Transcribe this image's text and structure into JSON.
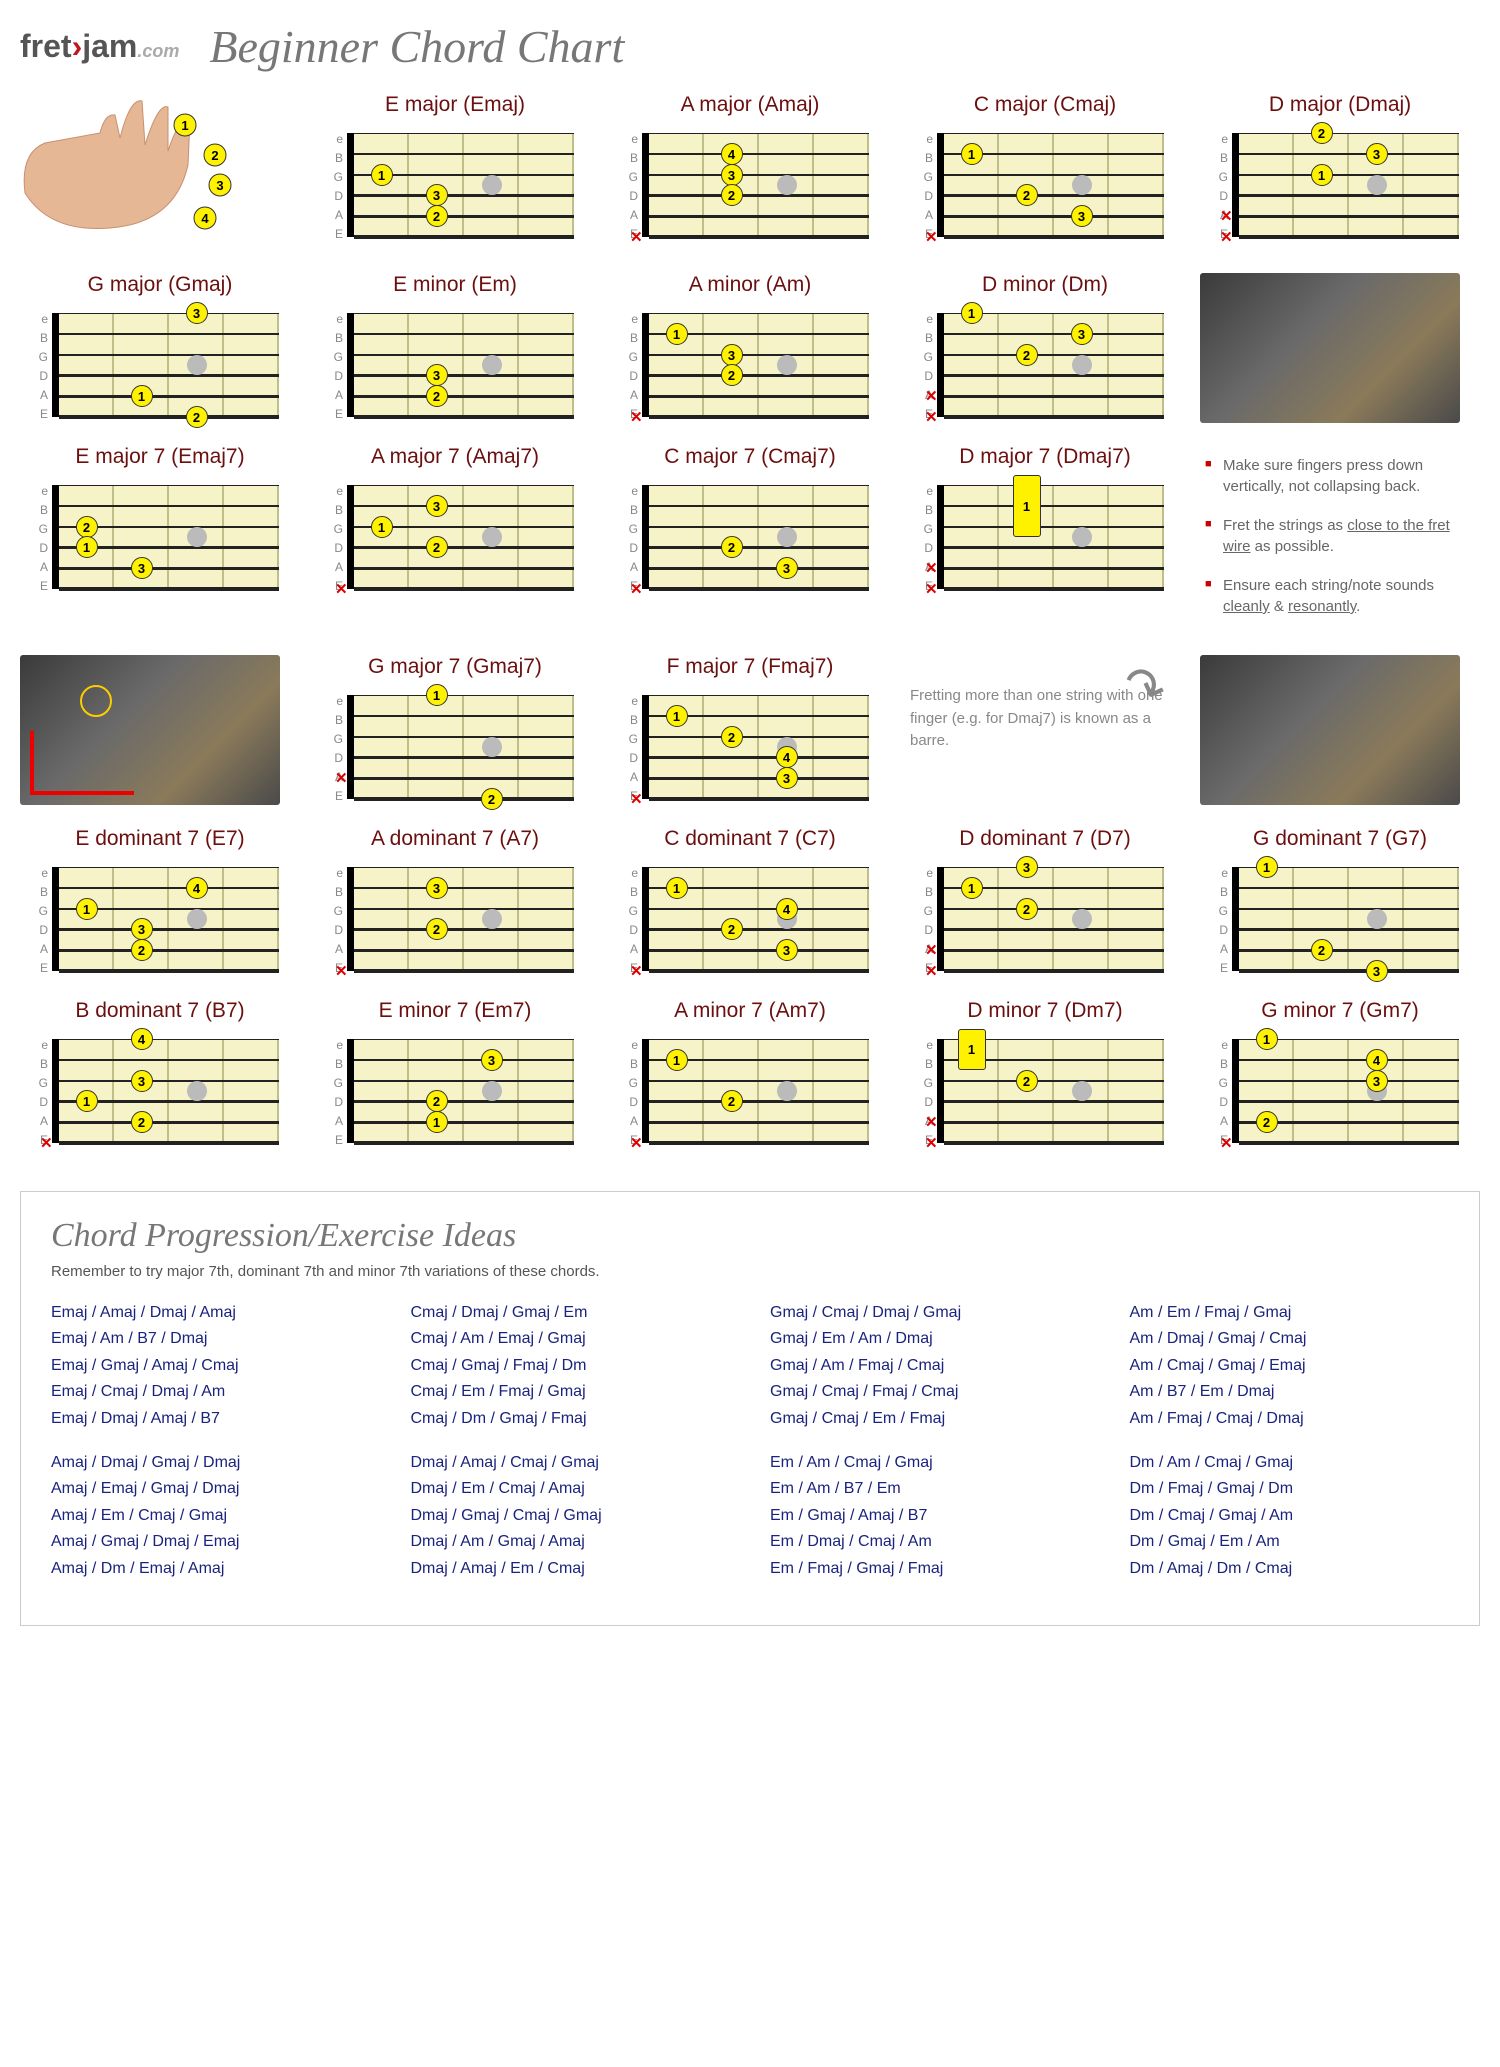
{
  "logo": {
    "fret": "fret",
    "arrow": "›",
    "jam": "jam",
    "dotcom": ".com"
  },
  "title": "Beginner Chord Chart",
  "stringLabels": [
    "e",
    "B",
    "G",
    "D",
    "A",
    "E"
  ],
  "handFingers": [
    "1",
    "2",
    "3",
    "4"
  ],
  "diagramStyle": {
    "bg": "#f5f3c7",
    "fingerColor": "#fff200",
    "fingerBorder": "#333",
    "nutColor": "#000",
    "fretLineColor": "#bfbf8a",
    "markerColor": "#bbb",
    "muteColor": "#d00",
    "titleColor": "#6b0f0f",
    "frets": 4,
    "strings": 6,
    "stringWeights": [
      1,
      1.5,
      2,
      2.5,
      3,
      3.5
    ]
  },
  "chords": [
    {
      "name": "E major (Emaj)",
      "mutes": [],
      "fingers": [
        {
          "s": 3,
          "f": 1,
          "n": "1"
        },
        {
          "s": 4,
          "f": 2,
          "n": "3"
        },
        {
          "s": 5,
          "f": 2,
          "n": "2"
        }
      ]
    },
    {
      "name": "A major (Amaj)",
      "mutes": [
        6
      ],
      "fingers": [
        {
          "s": 2,
          "f": 2,
          "n": "4"
        },
        {
          "s": 3,
          "f": 2,
          "n": "3"
        },
        {
          "s": 4,
          "f": 2,
          "n": "2"
        }
      ]
    },
    {
      "name": "C major (Cmaj)",
      "mutes": [
        6
      ],
      "fingers": [
        {
          "s": 2,
          "f": 1,
          "n": "1"
        },
        {
          "s": 4,
          "f": 2,
          "n": "2"
        },
        {
          "s": 5,
          "f": 3,
          "n": "3"
        }
      ]
    },
    {
      "name": "D major (Dmaj)",
      "mutes": [
        5,
        6
      ],
      "fingers": [
        {
          "s": 1,
          "f": 2,
          "n": "2"
        },
        {
          "s": 2,
          "f": 3,
          "n": "3"
        },
        {
          "s": 3,
          "f": 2,
          "n": "1"
        }
      ]
    },
    {
      "name": "G major (Gmaj)",
      "mutes": [],
      "fingers": [
        {
          "s": 1,
          "f": 3,
          "n": "3"
        },
        {
          "s": 5,
          "f": 2,
          "n": "1"
        },
        {
          "s": 6,
          "f": 3,
          "n": "2"
        }
      ]
    },
    {
      "name": "E minor (Em)",
      "mutes": [],
      "fingers": [
        {
          "s": 4,
          "f": 2,
          "n": "3"
        },
        {
          "s": 5,
          "f": 2,
          "n": "2"
        }
      ]
    },
    {
      "name": "A minor (Am)",
      "mutes": [
        6
      ],
      "fingers": [
        {
          "s": 2,
          "f": 1,
          "n": "1"
        },
        {
          "s": 3,
          "f": 2,
          "n": "3"
        },
        {
          "s": 4,
          "f": 2,
          "n": "2"
        }
      ]
    },
    {
      "name": "D minor (Dm)",
      "mutes": [
        5,
        6
      ],
      "fingers": [
        {
          "s": 1,
          "f": 1,
          "n": "1"
        },
        {
          "s": 2,
          "f": 3,
          "n": "3"
        },
        {
          "s": 3,
          "f": 2,
          "n": "2"
        }
      ]
    },
    {
      "name": "E major 7 (Emaj7)",
      "mutes": [],
      "fingers": [
        {
          "s": 3,
          "f": 1,
          "n": "2"
        },
        {
          "s": 4,
          "f": 1,
          "n": "1"
        },
        {
          "s": 5,
          "f": 2,
          "n": "3"
        }
      ]
    },
    {
      "name": "A major 7 (Amaj7)",
      "mutes": [
        6
      ],
      "fingers": [
        {
          "s": 2,
          "f": 2,
          "n": "3"
        },
        {
          "s": 3,
          "f": 1,
          "n": "1"
        },
        {
          "s": 4,
          "f": 2,
          "n": "2"
        }
      ]
    },
    {
      "name": "C major 7 (Cmaj7)",
      "mutes": [
        6
      ],
      "fingers": [
        {
          "s": 4,
          "f": 2,
          "n": "2"
        },
        {
          "s": 5,
          "f": 3,
          "n": "3"
        }
      ]
    },
    {
      "name": "D major 7 (Dmaj7)",
      "mutes": [
        5,
        6
      ],
      "barre": {
        "f": 2,
        "from": 1,
        "to": 3,
        "n": "1"
      },
      "fingers": []
    },
    {
      "name": "G major 7 (Gmaj7)",
      "mutes": [
        5
      ],
      "fingers": [
        {
          "s": 1,
          "f": 2,
          "n": "1"
        },
        {
          "s": 6,
          "f": 3,
          "n": "2"
        }
      ]
    },
    {
      "name": "F major 7 (Fmaj7)",
      "mutes": [
        6
      ],
      "fingers": [
        {
          "s": 2,
          "f": 1,
          "n": "1"
        },
        {
          "s": 3,
          "f": 2,
          "n": "2"
        },
        {
          "s": 4,
          "f": 3,
          "n": "4"
        },
        {
          "s": 5,
          "f": 3,
          "n": "3"
        }
      ]
    },
    {
      "name": "E dominant 7 (E7)",
      "mutes": [],
      "fingers": [
        {
          "s": 2,
          "f": 3,
          "n": "4"
        },
        {
          "s": 3,
          "f": 1,
          "n": "1"
        },
        {
          "s": 4,
          "f": 2,
          "n": "3"
        },
        {
          "s": 5,
          "f": 2,
          "n": "2"
        }
      ]
    },
    {
      "name": "A dominant 7 (A7)",
      "mutes": [
        6
      ],
      "fingers": [
        {
          "s": 2,
          "f": 2,
          "n": "3"
        },
        {
          "s": 4,
          "f": 2,
          "n": "2"
        }
      ]
    },
    {
      "name": "C dominant 7 (C7)",
      "mutes": [
        6
      ],
      "fingers": [
        {
          "s": 2,
          "f": 1,
          "n": "1"
        },
        {
          "s": 3,
          "f": 3,
          "n": "4"
        },
        {
          "s": 4,
          "f": 2,
          "n": "2"
        },
        {
          "s": 5,
          "f": 3,
          "n": "3"
        }
      ]
    },
    {
      "name": "D dominant 7 (D7)",
      "mutes": [
        5,
        6
      ],
      "fingers": [
        {
          "s": 1,
          "f": 2,
          "n": "3"
        },
        {
          "s": 2,
          "f": 1,
          "n": "1"
        },
        {
          "s": 3,
          "f": 2,
          "n": "2"
        }
      ]
    },
    {
      "name": "G dominant 7 (G7)",
      "mutes": [],
      "fingers": [
        {
          "s": 1,
          "f": 1,
          "n": "1"
        },
        {
          "s": 5,
          "f": 2,
          "n": "2"
        },
        {
          "s": 6,
          "f": 3,
          "n": "3"
        }
      ]
    },
    {
      "name": "B dominant 7 (B7)",
      "mutes": [
        6
      ],
      "fingers": [
        {
          "s": 1,
          "f": 2,
          "n": "4"
        },
        {
          "s": 3,
          "f": 2,
          "n": "3"
        },
        {
          "s": 4,
          "f": 1,
          "n": "1"
        },
        {
          "s": 5,
          "f": 2,
          "n": "2"
        }
      ]
    },
    {
      "name": "E minor 7 (Em7)",
      "mutes": [],
      "fingers": [
        {
          "s": 2,
          "f": 3,
          "n": "3"
        },
        {
          "s": 4,
          "f": 2,
          "n": "2"
        },
        {
          "s": 5,
          "f": 2,
          "n": "1"
        }
      ]
    },
    {
      "name": "A minor 7 (Am7)",
      "mutes": [
        6
      ],
      "fingers": [
        {
          "s": 2,
          "f": 1,
          "n": "1"
        },
        {
          "s": 4,
          "f": 2,
          "n": "2"
        }
      ]
    },
    {
      "name": "D minor 7 (Dm7)",
      "mutes": [
        5,
        6
      ],
      "barre": {
        "f": 1,
        "from": 1,
        "to": 2,
        "n": "1"
      },
      "fingers": [
        {
          "s": 3,
          "f": 2,
          "n": "2"
        }
      ]
    },
    {
      "name": "G minor 7 (Gm7)",
      "mutes": [
        6
      ],
      "fingers": [
        {
          "s": 1,
          "f": 1,
          "n": "1"
        },
        {
          "s": 2,
          "f": 3,
          "n": "4"
        },
        {
          "s": 3,
          "f": 3,
          "n": "3"
        },
        {
          "s": 5,
          "f": 1,
          "n": "2"
        }
      ]
    }
  ],
  "tips": [
    "Make sure fingers press down vertically, not collapsing back.",
    "Fret the strings as <u>close to the fret wire</u> as possible.",
    "Ensure each string/note sounds <u>cleanly</u> & <u>resonantly</u>."
  ],
  "barreNote": "Fretting more than one string with one finger (e.g. for Dmaj7) is known as a barre.",
  "progTitle": "Chord Progression/Exercise Ideas",
  "progSub": "Remember to try major 7th, dominant 7th and minor 7th variations of these chords.",
  "progressions": [
    [
      [
        "Emaj / Amaj / Dmaj / Amaj",
        "Emaj / Am / B7 / Dmaj",
        "Emaj / Gmaj / Amaj / Cmaj",
        "Emaj / Cmaj / Dmaj / Am",
        "Emaj / Dmaj / Amaj / B7"
      ],
      [
        "Amaj / Dmaj / Gmaj / Dmaj",
        "Amaj / Emaj / Gmaj / Dmaj",
        "Amaj / Em / Cmaj / Gmaj",
        "Amaj / Gmaj / Dmaj / Emaj",
        "Amaj / Dm / Emaj / Amaj"
      ]
    ],
    [
      [
        "Cmaj / Dmaj / Gmaj / Em",
        "Cmaj / Am / Emaj / Gmaj",
        "Cmaj / Gmaj / Fmaj / Dm",
        "Cmaj / Em / Fmaj / Gmaj",
        "Cmaj / Dm / Gmaj / Fmaj"
      ],
      [
        "Dmaj / Amaj / Cmaj / Gmaj",
        "Dmaj / Em / Cmaj / Amaj",
        "Dmaj / Gmaj / Cmaj / Gmaj",
        "Dmaj / Am / Gmaj / Amaj",
        "Dmaj / Amaj / Em / Cmaj"
      ]
    ],
    [
      [
        "Gmaj / Cmaj / Dmaj / Gmaj",
        "Gmaj / Em / Am / Dmaj",
        "Gmaj / Am / Fmaj / Cmaj",
        "Gmaj / Cmaj / Fmaj / Cmaj",
        "Gmaj / Cmaj / Em / Fmaj"
      ],
      [
        "Em / Am / Cmaj / Gmaj",
        "Em / Am / B7 / Em",
        "Em / Gmaj / Amaj / B7",
        "Em / Dmaj / Cmaj / Am",
        "Em / Fmaj / Gmaj / Fmaj"
      ]
    ],
    [
      [
        "Am / Em / Fmaj / Gmaj",
        "Am / Dmaj / Gmaj / Cmaj",
        "Am / Cmaj / Gmaj / Emaj",
        "Am / B7 / Em / Dmaj",
        "Am / Fmaj / Cmaj / Dmaj"
      ],
      [
        "Dm / Am / Cmaj / Gmaj",
        "Dm / Fmaj / Gmaj / Dm",
        "Dm / Cmaj / Gmaj / Am",
        "Dm / Gmaj / Em / Am",
        "Dm / Amaj / Dm / Cmaj"
      ]
    ]
  ]
}
